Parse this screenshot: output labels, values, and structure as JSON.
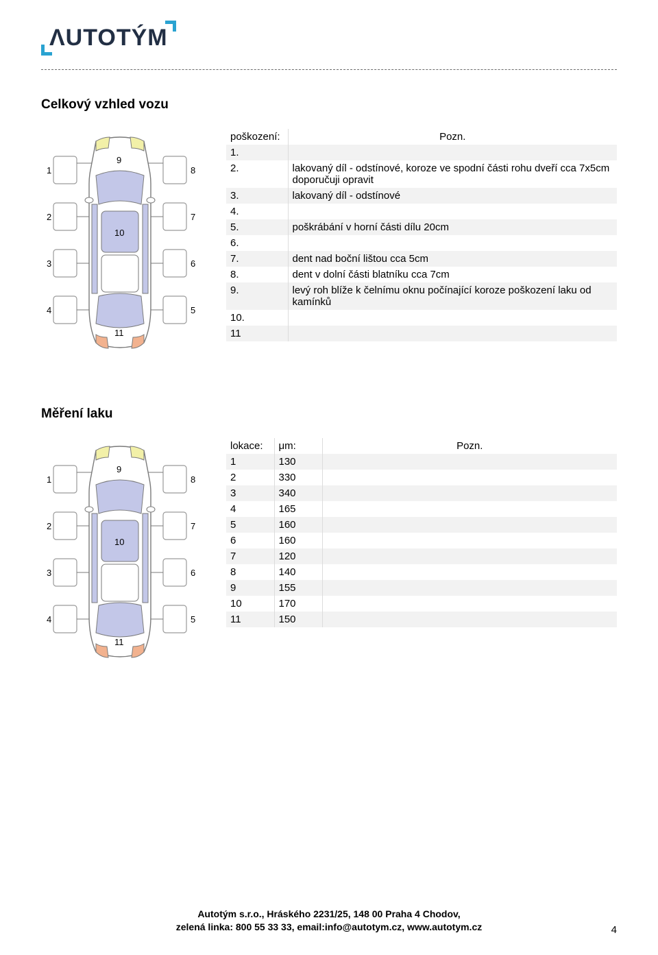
{
  "logo_text": "ΛUTOTÝM",
  "section1_title": "Celkový vzhled vozu",
  "section2_title": "Měření laku",
  "damage_header": {
    "col1": "poškození:",
    "col2": "Pozn."
  },
  "damage_rows": [
    {
      "n": "1.",
      "t": ""
    },
    {
      "n": "2.",
      "t": "lakovaný díl - odstínové, koroze ve spodní části rohu dveří cca 7x5cm doporučuji opravit"
    },
    {
      "n": "3.",
      "t": "lakovaný díl - odstínové"
    },
    {
      "n": "4.",
      "t": ""
    },
    {
      "n": "5.",
      "t": "poškrábání v horní části dílu 20cm"
    },
    {
      "n": "6.",
      "t": ""
    },
    {
      "n": "7.",
      "t": "dent nad boční lištou cca 5cm"
    },
    {
      "n": "8.",
      "t": "dent  v dolní části blatníku cca 7cm"
    },
    {
      "n": "9.",
      "t": "levý roh blíže k čelnímu oknu počínající koroze poškození laku od kamínků"
    },
    {
      "n": "10.",
      "t": ""
    },
    {
      "n": "11",
      "t": ""
    }
  ],
  "paint_header": {
    "col1": "lokace:",
    "col2": "μm:",
    "col3": "Pozn."
  },
  "paint_rows": [
    {
      "loc": "1",
      "um": "130",
      "note": ""
    },
    {
      "loc": "2",
      "um": "330",
      "note": ""
    },
    {
      "loc": "3",
      "um": "340",
      "note": ""
    },
    {
      "loc": "4",
      "um": "165",
      "note": ""
    },
    {
      "loc": "5",
      "um": "160",
      "note": ""
    },
    {
      "loc": "6",
      "um": "160",
      "note": ""
    },
    {
      "loc": "7",
      "um": "120",
      "note": ""
    },
    {
      "loc": "8",
      "um": "140",
      "note": ""
    },
    {
      "loc": "9",
      "um": "155",
      "note": ""
    },
    {
      "loc": "10",
      "um": "170",
      "note": ""
    },
    {
      "loc": "11",
      "um": "150",
      "note": ""
    }
  ],
  "car_diagram": {
    "labels": [
      "1",
      "2",
      "3",
      "4",
      "5",
      "6",
      "7",
      "8",
      "9",
      "10",
      "11"
    ],
    "body_color": "#c3c7e8",
    "outline_color": "#7a7a7a",
    "light_front_color": "#f2f0a8",
    "light_rear_color": "#f2b28f",
    "panel_fill": "#ffffff",
    "panel_stroke": "#9a9a9a"
  },
  "footer_line1": "Autotým s.r.o., Hráského 2231/25, 148 00 Praha 4 Chodov,",
  "footer_line2": "zelená linka: 800 55 33 33, email:info@autotym.cz, www.autotym.cz",
  "page_number": "4"
}
